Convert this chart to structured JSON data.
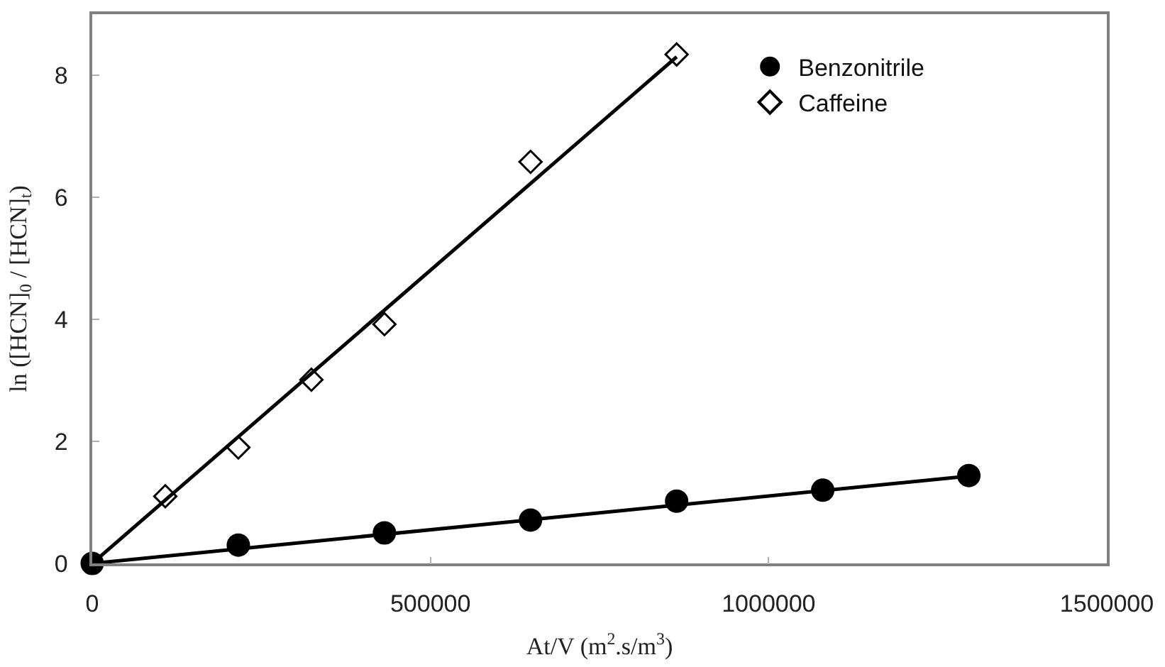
{
  "chart_data": {
    "type": "scatter",
    "xlabel": "At/V (m$^{2}$.s/m$^{3}$)",
    "ylabel": "ln ([HCN]$_{0}$ / [HCN]$_{t}$)",
    "xlim": [
      0,
      1500000
    ],
    "xticks": [
      0,
      500000,
      1000000,
      1500000
    ],
    "ylim": [
      0,
      9
    ],
    "yticks": [
      0,
      2,
      4,
      6,
      8
    ],
    "legend": "top right",
    "series": [
      {
        "name": "Benzonitrile",
        "color": "#000000",
        "marker": "circle",
        "x": [
          0,
          216000,
          432000,
          648000,
          864000,
          1080000,
          1296000
        ],
        "values": [
          0,
          0.3,
          0.5,
          0.71,
          1.02,
          1.2,
          1.44
        ]
      },
      {
        "name": "Caffeine",
        "color": "#000000",
        "marker": "diamond",
        "x": [
          108000,
          216000,
          324000,
          432000,
          648000,
          864000
        ],
        "values": [
          1.1,
          1.9,
          3.01,
          3.92,
          6.58,
          8.34
        ]
      },
      {
        "type": "line",
        "color": "#000000",
        "x": [
          0,
          1296000
        ],
        "values": [
          0,
          1.43
        ]
      },
      {
        "type": "line",
        "color": "#000000",
        "x": [
          0,
          864000
        ],
        "values": [
          0,
          8.3
        ]
      }
    ]
  }
}
